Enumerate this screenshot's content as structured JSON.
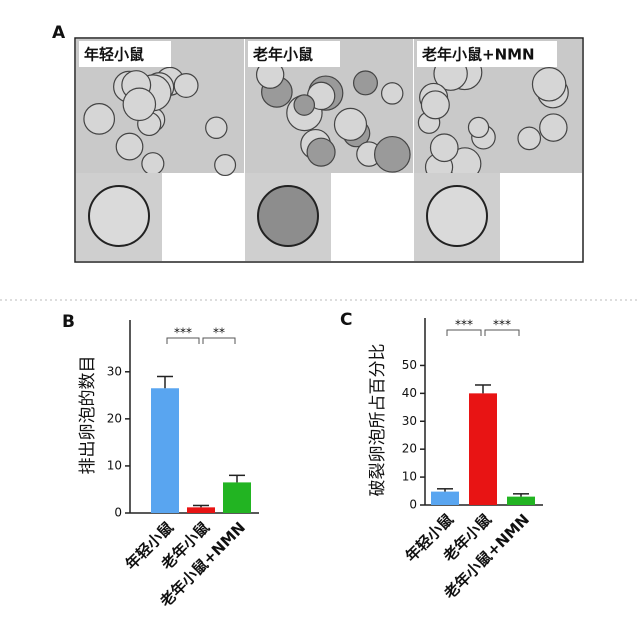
{
  "panel_a": {
    "label": "A",
    "groups": [
      "年轻小鼠",
      "老年小鼠",
      "老年小鼠+NMN"
    ]
  },
  "chart_data": [
    {
      "type": "bar",
      "panel_label": "B",
      "y_label": "排出卵泡的数目",
      "categories": [
        "年轻小鼠",
        "老年小鼠",
        "老年小鼠+NMN"
      ],
      "values": [
        26.5,
        1.2,
        6.5
      ],
      "errors": [
        2.5,
        0.4,
        1.5
      ],
      "colors": [
        "#59a5f0",
        "#e81414",
        "#22b422"
      ],
      "ylim": [
        0,
        41
      ],
      "yticks": [
        0,
        10,
        20,
        30
      ],
      "annotations": [
        "***",
        "**"
      ]
    },
    {
      "type": "bar",
      "panel_label": "C",
      "y_label": "破裂卵泡所占百分比",
      "categories": [
        "年轻小鼠",
        "老年小鼠",
        "老年小鼠+NMN"
      ],
      "values": [
        4.8,
        40,
        3
      ],
      "errors": [
        1,
        3,
        1
      ],
      "colors": [
        "#59a5f0",
        "#e81414",
        "#22b422"
      ],
      "ylim": [
        0,
        67
      ],
      "yticks": [
        0,
        10,
        20,
        30,
        40,
        50
      ],
      "annotations": [
        "***",
        "***"
      ]
    }
  ]
}
